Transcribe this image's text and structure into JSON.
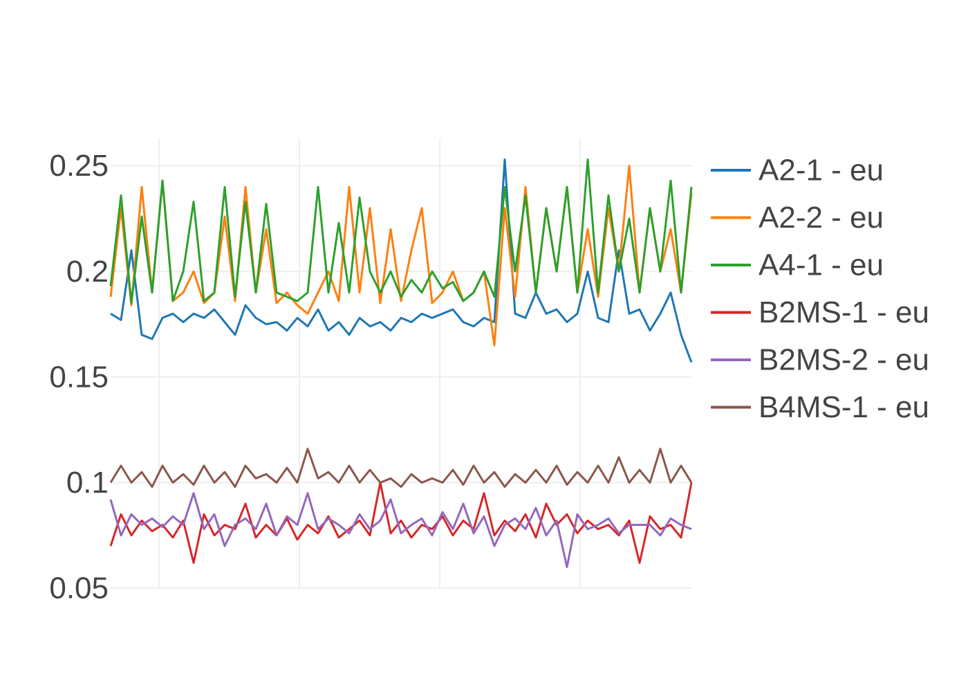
{
  "chart_data": {
    "type": "line",
    "title": "",
    "xlabel": "",
    "ylabel": "",
    "x_range": [
      0,
      840
    ],
    "ylim": [
      0.05,
      0.263
    ],
    "y_ticks": [
      {
        "value": 0.05,
        "label": "0.05"
      },
      {
        "value": 0.1,
        "label": "0.1"
      },
      {
        "value": 0.15,
        "label": "0.15"
      },
      {
        "value": 0.2,
        "label": "0.2"
      },
      {
        "value": 0.25,
        "label": "0.25"
      }
    ],
    "x_gridlines": [
      70,
      273,
      476,
      679
    ],
    "x_tick_labels_visible": false,
    "grid": true,
    "legend": {
      "placement": "right"
    },
    "series": [
      {
        "name": "A2-1 - eu",
        "color": "#1f77b4",
        "x": [
          0,
          15,
          30,
          45,
          60,
          75,
          90,
          105,
          120,
          135,
          150,
          165,
          180,
          195,
          210,
          225,
          240,
          255,
          270,
          285,
          300,
          315,
          330,
          345,
          360,
          375,
          390,
          405,
          420,
          435,
          450,
          465,
          480,
          495,
          510,
          525,
          540,
          555,
          570,
          585,
          600,
          615,
          630,
          645,
          660,
          675,
          690,
          705,
          720,
          735,
          750,
          765,
          780,
          795,
          810,
          825,
          840
        ],
        "y": [
          0.18,
          0.177,
          0.21,
          0.17,
          0.168,
          0.178,
          0.18,
          0.176,
          0.18,
          0.178,
          0.182,
          0.176,
          0.17,
          0.184,
          0.178,
          0.175,
          0.176,
          0.172,
          0.178,
          0.174,
          0.182,
          0.172,
          0.176,
          0.17,
          0.178,
          0.174,
          0.176,
          0.172,
          0.178,
          0.176,
          0.18,
          0.178,
          0.18,
          0.182,
          0.176,
          0.174,
          0.178,
          0.176,
          0.253,
          0.18,
          0.178,
          0.19,
          0.18,
          0.182,
          0.176,
          0.18,
          0.2,
          0.178,
          0.176,
          0.21,
          0.18,
          0.182,
          0.172,
          0.18,
          0.19,
          0.17,
          0.157
        ]
      },
      {
        "name": "A2-2 - eu",
        "color": "#ff7f0e",
        "x": [
          0,
          15,
          30,
          45,
          60,
          75,
          90,
          105,
          120,
          135,
          150,
          165,
          180,
          195,
          210,
          225,
          240,
          255,
          270,
          285,
          300,
          315,
          330,
          345,
          360,
          375,
          390,
          405,
          420,
          435,
          450,
          465,
          480,
          495,
          510,
          525,
          540,
          555,
          570,
          585,
          600,
          615,
          630,
          645,
          660,
          675,
          690,
          705,
          720,
          735,
          750,
          765,
          780,
          795,
          810,
          825,
          840
        ],
        "y": [
          0.188,
          0.23,
          0.184,
          0.24,
          0.19,
          0.243,
          0.186,
          0.19,
          0.2,
          0.185,
          0.19,
          0.226,
          0.186,
          0.24,
          0.19,
          0.22,
          0.185,
          0.19,
          0.184,
          0.18,
          0.19,
          0.2,
          0.186,
          0.24,
          0.19,
          0.23,
          0.185,
          0.22,
          0.186,
          0.21,
          0.23,
          0.185,
          0.19,
          0.2,
          0.186,
          0.19,
          0.2,
          0.165,
          0.23,
          0.188,
          0.24,
          0.19,
          0.23,
          0.2,
          0.24,
          0.19,
          0.22,
          0.188,
          0.23,
          0.2,
          0.25,
          0.19,
          0.23,
          0.2,
          0.22,
          0.19,
          0.237
        ]
      },
      {
        "name": "A4-1 - eu",
        "color": "#2ca02c",
        "x": [
          0,
          15,
          30,
          45,
          60,
          75,
          90,
          105,
          120,
          135,
          150,
          165,
          180,
          195,
          210,
          225,
          240,
          255,
          270,
          285,
          300,
          315,
          330,
          345,
          360,
          375,
          390,
          405,
          420,
          435,
          450,
          465,
          480,
          495,
          510,
          525,
          540,
          555,
          570,
          585,
          600,
          615,
          630,
          645,
          660,
          675,
          690,
          705,
          720,
          735,
          750,
          765,
          780,
          795,
          810,
          825,
          840
        ],
        "y": [
          0.193,
          0.236,
          0.185,
          0.226,
          0.19,
          0.243,
          0.186,
          0.2,
          0.233,
          0.186,
          0.19,
          0.24,
          0.188,
          0.233,
          0.19,
          0.232,
          0.19,
          0.188,
          0.186,
          0.19,
          0.24,
          0.19,
          0.223,
          0.19,
          0.235,
          0.2,
          0.19,
          0.2,
          0.188,
          0.196,
          0.19,
          0.2,
          0.192,
          0.195,
          0.186,
          0.19,
          0.2,
          0.188,
          0.24,
          0.2,
          0.236,
          0.19,
          0.23,
          0.2,
          0.24,
          0.19,
          0.253,
          0.19,
          0.236,
          0.2,
          0.225,
          0.19,
          0.23,
          0.2,
          0.243,
          0.19,
          0.24
        ]
      },
      {
        "name": "B2MS-1 - eu",
        "color": "#d62728",
        "x": [
          0,
          15,
          30,
          45,
          60,
          75,
          90,
          105,
          120,
          135,
          150,
          165,
          180,
          195,
          210,
          225,
          240,
          255,
          270,
          285,
          300,
          315,
          330,
          345,
          360,
          375,
          390,
          405,
          420,
          435,
          450,
          465,
          480,
          495,
          510,
          525,
          540,
          555,
          570,
          585,
          600,
          615,
          630,
          645,
          660,
          675,
          690,
          705,
          720,
          735,
          750,
          765,
          780,
          795,
          810,
          825,
          840
        ],
        "y": [
          0.07,
          0.085,
          0.075,
          0.082,
          0.077,
          0.08,
          0.074,
          0.082,
          0.062,
          0.085,
          0.075,
          0.08,
          0.078,
          0.09,
          0.074,
          0.08,
          0.075,
          0.083,
          0.073,
          0.08,
          0.076,
          0.084,
          0.074,
          0.078,
          0.082,
          0.075,
          0.1,
          0.076,
          0.082,
          0.074,
          0.08,
          0.078,
          0.084,
          0.075,
          0.082,
          0.078,
          0.095,
          0.075,
          0.082,
          0.077,
          0.085,
          0.074,
          0.09,
          0.08,
          0.085,
          0.076,
          0.082,
          0.078,
          0.08,
          0.075,
          0.082,
          0.062,
          0.084,
          0.078,
          0.08,
          0.074,
          0.1
        ]
      },
      {
        "name": "B2MS-2 - eu",
        "color": "#9467bd",
        "x": [
          0,
          15,
          30,
          45,
          60,
          75,
          90,
          105,
          120,
          135,
          150,
          165,
          180,
          195,
          210,
          225,
          240,
          255,
          270,
          285,
          300,
          315,
          330,
          345,
          360,
          375,
          390,
          405,
          420,
          435,
          450,
          465,
          480,
          495,
          510,
          525,
          540,
          555,
          570,
          585,
          600,
          615,
          630,
          645,
          660,
          675,
          690,
          705,
          720,
          735,
          750,
          765,
          780,
          795,
          810,
          825,
          840
        ],
        "y": [
          0.092,
          0.075,
          0.085,
          0.08,
          0.083,
          0.079,
          0.084,
          0.08,
          0.095,
          0.078,
          0.085,
          0.07,
          0.08,
          0.083,
          0.078,
          0.09,
          0.075,
          0.084,
          0.08,
          0.095,
          0.078,
          0.083,
          0.08,
          0.076,
          0.085,
          0.078,
          0.082,
          0.092,
          0.076,
          0.08,
          0.083,
          0.075,
          0.086,
          0.078,
          0.09,
          0.076,
          0.084,
          0.07,
          0.08,
          0.083,
          0.078,
          0.088,
          0.075,
          0.082,
          0.06,
          0.085,
          0.078,
          0.08,
          0.083,
          0.076,
          0.08,
          0.08,
          0.08,
          0.075,
          0.083,
          0.08,
          0.078
        ]
      },
      {
        "name": "B4MS-1 - eu",
        "color": "#8c564b",
        "x": [
          0,
          15,
          30,
          45,
          60,
          75,
          90,
          105,
          120,
          135,
          150,
          165,
          180,
          195,
          210,
          225,
          240,
          255,
          270,
          285,
          300,
          315,
          330,
          345,
          360,
          375,
          390,
          405,
          420,
          435,
          450,
          465,
          480,
          495,
          510,
          525,
          540,
          555,
          570,
          585,
          600,
          615,
          630,
          645,
          660,
          675,
          690,
          705,
          720,
          735,
          750,
          765,
          780,
          795,
          810,
          825,
          840
        ],
        "y": [
          0.1,
          0.108,
          0.1,
          0.105,
          0.098,
          0.108,
          0.1,
          0.104,
          0.099,
          0.108,
          0.1,
          0.105,
          0.098,
          0.108,
          0.102,
          0.104,
          0.1,
          0.107,
          0.1,
          0.116,
          0.102,
          0.105,
          0.1,
          0.108,
          0.1,
          0.106,
          0.1,
          0.102,
          0.098,
          0.104,
          0.1,
          0.102,
          0.1,
          0.106,
          0.099,
          0.108,
          0.1,
          0.105,
          0.098,
          0.104,
          0.1,
          0.106,
          0.1,
          0.108,
          0.099,
          0.105,
          0.1,
          0.108,
          0.1,
          0.112,
          0.1,
          0.106,
          0.1,
          0.116,
          0.1,
          0.108,
          0.1
        ]
      }
    ]
  }
}
